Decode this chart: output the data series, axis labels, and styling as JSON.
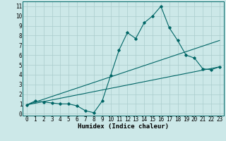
{
  "xlabel": "Humidex (Indice chaleur)",
  "bg_color": "#cce8e8",
  "grid_color": "#aacccc",
  "line_color": "#006666",
  "xlim": [
    -0.5,
    23.5
  ],
  "ylim": [
    -0.2,
    11.5
  ],
  "xticks": [
    0,
    1,
    2,
    3,
    4,
    5,
    6,
    7,
    8,
    9,
    10,
    11,
    12,
    13,
    14,
    15,
    16,
    17,
    18,
    19,
    20,
    21,
    22,
    23
  ],
  "yticks": [
    0,
    1,
    2,
    3,
    4,
    5,
    6,
    7,
    8,
    9,
    10,
    11
  ],
  "series1_x": [
    0,
    1,
    2,
    3,
    4,
    5,
    6,
    7,
    8,
    9,
    10,
    11,
    12,
    13,
    14,
    15,
    16,
    17,
    18,
    19,
    20,
    21,
    22,
    23
  ],
  "series1_y": [
    0.9,
    1.3,
    1.2,
    1.1,
    1.0,
    1.0,
    0.8,
    0.3,
    0.1,
    1.3,
    3.9,
    6.5,
    8.3,
    7.7,
    9.3,
    10.0,
    11.0,
    8.8,
    7.5,
    6.0,
    5.7,
    4.6,
    4.5,
    4.8
  ],
  "series2_x": [
    0,
    23
  ],
  "series2_y": [
    0.9,
    4.8
  ],
  "series3_x": [
    0,
    23
  ],
  "series3_y": [
    0.9,
    7.5
  ],
  "font_size_label": 6.5,
  "font_size_tick": 5.5
}
